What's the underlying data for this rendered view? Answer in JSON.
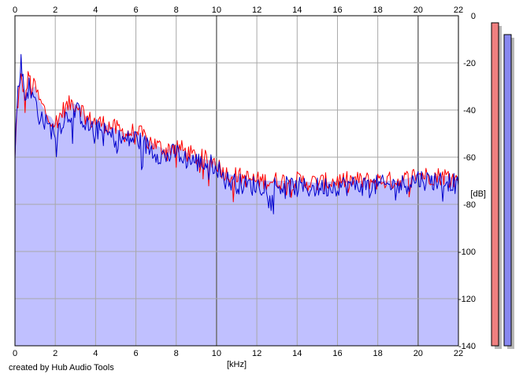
{
  "credit": "created by Hub Audio Tools",
  "colors": {
    "fill": "#c0c0ff",
    "grid": "#a8a8a8",
    "grid_major": "#707070",
    "left_channel": "#ff0000",
    "right_channel": "#0000cc",
    "meter_left": "#f08080",
    "meter_right": "#8888f0",
    "meter_shadow": "#b8b8b8"
  },
  "chart_data": {
    "type": "line",
    "title": "",
    "xlabel": "[kHz]",
    "ylabel": "[dB]",
    "xlim": [
      0,
      22
    ],
    "ylim": [
      -140,
      0
    ],
    "x_ticks": [
      0,
      2,
      4,
      6,
      8,
      10,
      12,
      14,
      16,
      18,
      20,
      22
    ],
    "y_ticks": [
      0,
      -20,
      -40,
      -60,
      -80,
      -100,
      -120,
      -140
    ],
    "grid": true,
    "x_ticks_top_and_bottom": true,
    "y_axis_side": "right",
    "filled_under_lines": true,
    "series": [
      {
        "color": "#ff0000",
        "x": [
          0,
          0.1,
          0.2,
          0.3,
          0.4,
          0.5,
          0.6,
          0.7,
          0.8,
          1.0,
          1.2,
          1.4,
          1.6,
          1.8,
          2.0,
          2.4,
          2.8,
          3.2,
          3.6,
          4.0,
          4.5,
          5.0,
          5.5,
          6.0,
          6.5,
          7.0,
          7.5,
          8.0,
          8.5,
          9.0,
          9.5,
          10.0,
          10.2,
          10.5,
          11.0,
          11.5,
          12.0,
          13.0,
          14.0,
          15.0,
          16.0,
          17.0,
          18.0,
          19.0,
          19.5,
          20.0,
          20.5,
          21.0,
          21.5,
          22.0
        ],
        "y": [
          -61,
          -40,
          -33,
          -27,
          -30,
          -38,
          -29,
          -25,
          -31,
          -30,
          -36,
          -39,
          -42,
          -43,
          -46,
          -40,
          -37,
          -38,
          -44,
          -45,
          -46,
          -48,
          -50,
          -49,
          -52,
          -55,
          -57,
          -55,
          -58,
          -60,
          -61,
          -62,
          -65,
          -67,
          -68,
          -69,
          -70,
          -70,
          -70,
          -71,
          -70,
          -70,
          -70,
          -70,
          -69,
          -67,
          -68,
          -68,
          -68,
          -70
        ]
      },
      {
        "color": "#0000cc",
        "x": [
          0,
          0.1,
          0.2,
          0.3,
          0.4,
          0.5,
          0.6,
          0.7,
          0.8,
          1.0,
          1.2,
          1.4,
          1.6,
          1.8,
          2.0,
          2.4,
          2.8,
          3.2,
          3.6,
          4.0,
          4.5,
          5.0,
          5.5,
          6.0,
          6.5,
          7.0,
          7.5,
          8.0,
          8.5,
          9.0,
          9.5,
          10.0,
          10.2,
          10.5,
          11.0,
          11.5,
          12.0,
          13.0,
          14.0,
          15.0,
          16.0,
          17.0,
          18.0,
          19.0,
          19.5,
          20.0,
          20.5,
          21.0,
          21.5,
          22.0
        ],
        "y": [
          -59,
          -37,
          -28,
          -20,
          -26,
          -35,
          -32,
          -30,
          -34,
          -36,
          -42,
          -44,
          -47,
          -48,
          -50,
          -44,
          -41,
          -41,
          -47,
          -48,
          -50,
          -52,
          -53,
          -52,
          -55,
          -58,
          -60,
          -58,
          -61,
          -62,
          -63,
          -63,
          -67,
          -70,
          -71,
          -72,
          -72,
          -72,
          -73,
          -73,
          -72,
          -72,
          -72,
          -72,
          -71,
          -69,
          -70,
          -70,
          -70,
          -72
        ]
      }
    ],
    "level_meters": [
      {
        "channel": "left",
        "color": "#f08080",
        "peak_db": -3
      },
      {
        "channel": "right",
        "color": "#8888f0",
        "peak_db": -8
      }
    ]
  }
}
